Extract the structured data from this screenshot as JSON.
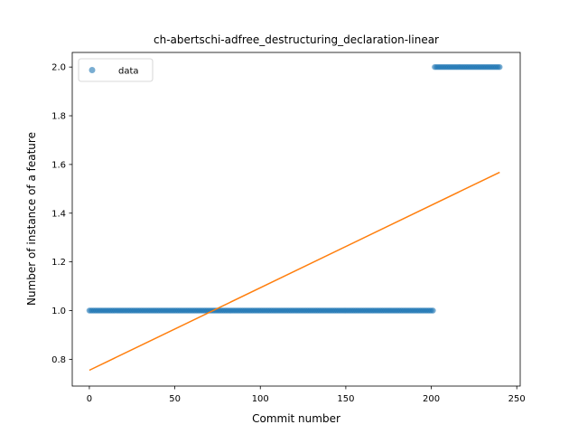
{
  "chart_data": {
    "type": "scatter",
    "title": "ch-abertschi-adfree_destructuring_declaration-linear",
    "xlabel": "Commit number",
    "ylabel": "Number of instance of a feature",
    "xlim": [
      -10,
      252
    ],
    "ylim": [
      0.69,
      2.06
    ],
    "xticks": [
      0,
      50,
      100,
      150,
      200,
      250
    ],
    "xtick_labels": [
      "0",
      "50",
      "100",
      "150",
      "200",
      "250"
    ],
    "yticks": [
      0.8,
      1.0,
      1.2,
      1.4,
      1.6,
      1.8,
      2.0
    ],
    "ytick_labels": [
      "0.8",
      "1.0",
      "1.2",
      "1.4",
      "1.6",
      "1.8",
      "2.0"
    ],
    "series": [
      {
        "name": "data",
        "kind": "points",
        "color": "#1f77b4",
        "segments": [
          {
            "x_start": 0,
            "x_end": 201,
            "y": 1.0
          },
          {
            "x_start": 202,
            "x_end": 240,
            "y": 2.0
          }
        ]
      },
      {
        "kind": "line",
        "color": "#ff7f0e",
        "x": [
          0,
          240
        ],
        "y": [
          0.755,
          1.568
        ]
      }
    ],
    "legend": {
      "placement": "top-left",
      "entries": [
        "data"
      ]
    },
    "grid": false
  }
}
